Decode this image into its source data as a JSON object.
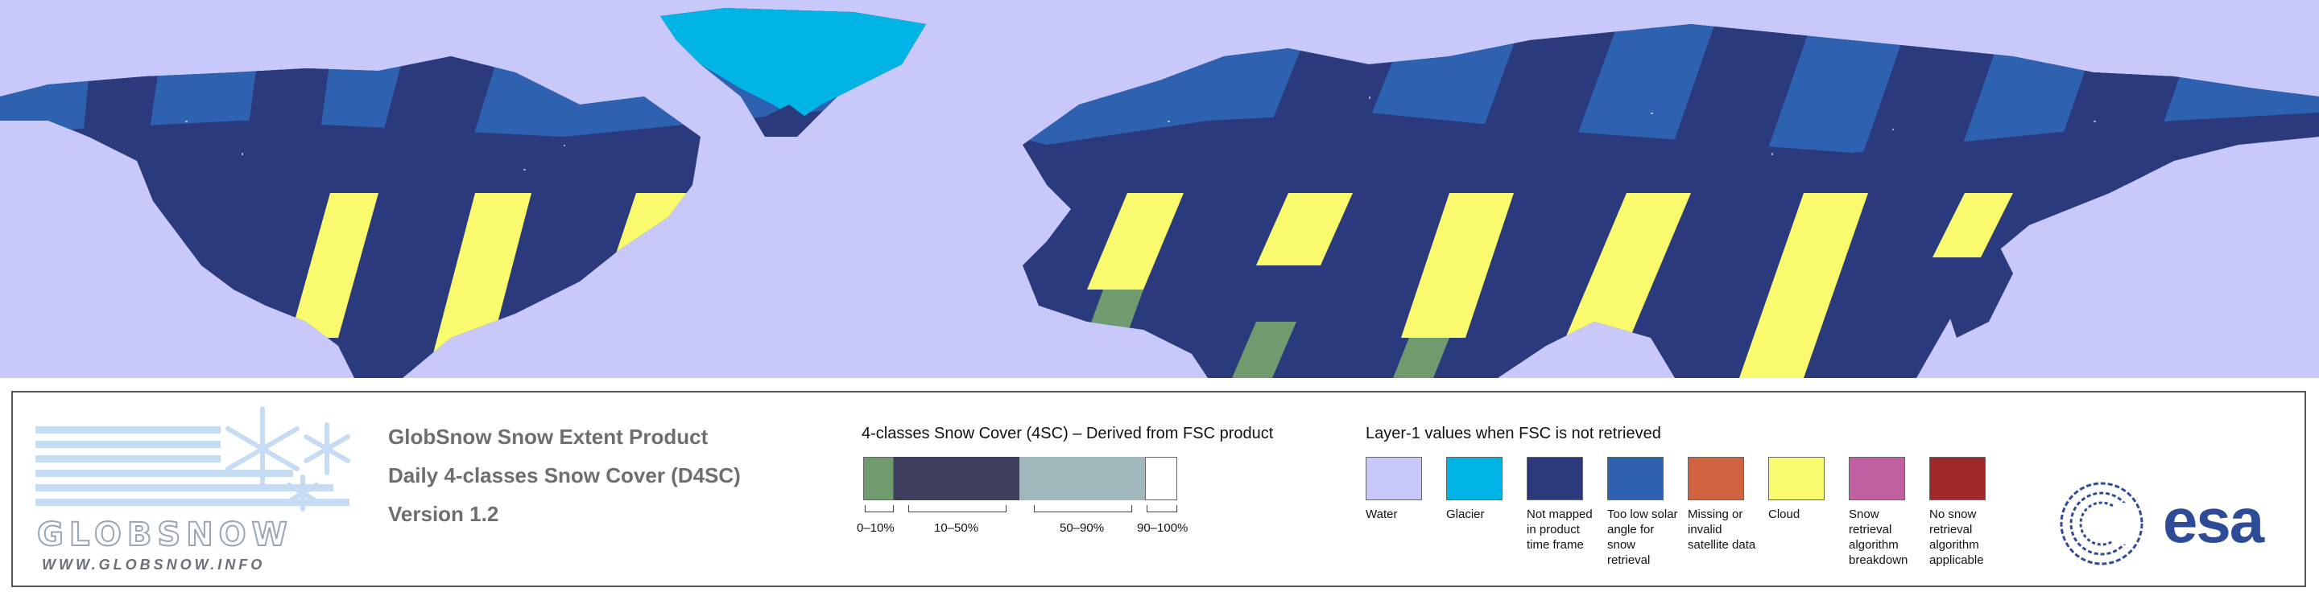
{
  "map": {
    "colors": {
      "water": "#c8c8fb",
      "not_mapped": "#2a3a7c",
      "low_sun": "#2e62b0",
      "glacier": "#00b4e6",
      "cloud": "#fafa6e",
      "snow_free_green": "#6f9b6f"
    }
  },
  "logo": {
    "wordmark": "GLOBSNOW",
    "url": "WWW.GLOBSNOW.INFO"
  },
  "product": {
    "line1": "GlobSnow Snow Extent Product",
    "line2": "Daily 4-classes Snow Cover (D4SC)",
    "line3": "Version 1.2"
  },
  "scale": {
    "title": "4-classes Snow Cover (4SC) – Derived from FSC product",
    "classes": [
      {
        "label": "0–10%",
        "color": "#6f9b6f"
      },
      {
        "label": "10–50%",
        "color": "#3e3f5f"
      },
      {
        "label": "50–90%",
        "color": "#a0b8bc"
      },
      {
        "label": "90–100%",
        "color": "#ffffff"
      }
    ]
  },
  "layer1": {
    "title": "Layer-1 values when FSC is not retrieved",
    "items": [
      {
        "label": "Water",
        "color": "#c8c8fb"
      },
      {
        "label": "Glacier",
        "color": "#00b4e6"
      },
      {
        "label": "Not mapped in product time frame",
        "color": "#2a3a7c"
      },
      {
        "label": "Too low solar angle for snow retrieval",
        "color": "#2e62b0"
      },
      {
        "label": "Missing or invalid satellite data",
        "color": "#d06240"
      },
      {
        "label": "Cloud",
        "color": "#fafa6e"
      },
      {
        "label": "Snow retrieval algorithm breakdown",
        "color": "#c060a0"
      },
      {
        "label": "No snow retrieval algorithm applicable",
        "color": "#a02828"
      }
    ]
  },
  "esa": {
    "text": "esa"
  }
}
